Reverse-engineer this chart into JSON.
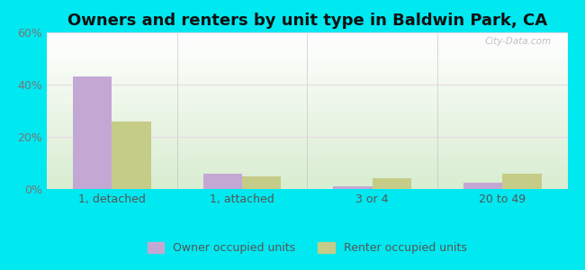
{
  "title": "Owners and renters by unit type in Baldwin Park, CA",
  "categories": [
    "1, detached",
    "1, attached",
    "3 or 4",
    "20 to 49"
  ],
  "owner_values": [
    43,
    6,
    1,
    2.5
  ],
  "renter_values": [
    26,
    5,
    4,
    6
  ],
  "owner_color": "#c4a8d4",
  "renter_color": "#c5cc88",
  "ylim": [
    0,
    60
  ],
  "yticks": [
    0,
    20,
    40,
    60
  ],
  "ytick_labels": [
    "0%",
    "20%",
    "40%",
    "60%"
  ],
  "background_outer": "#00e8f0",
  "title_fontsize": 13,
  "legend_labels": [
    "Owner occupied units",
    "Renter occupied units"
  ],
  "bar_width": 0.3,
  "watermark": "City-Data.com"
}
